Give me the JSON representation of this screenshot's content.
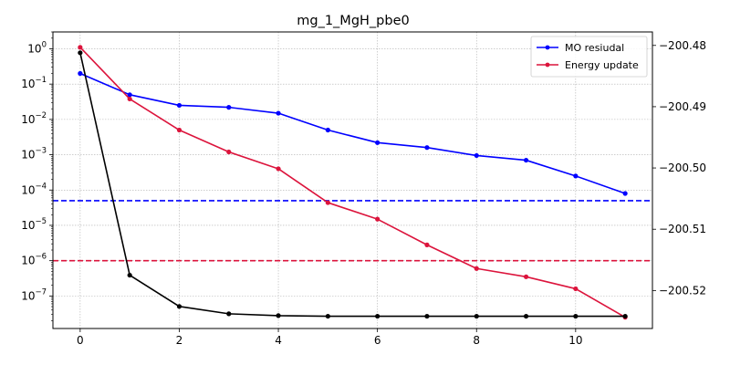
{
  "chart_data": {
    "type": "line",
    "title": "mg_1_MgH_pbe0",
    "xlabel": "",
    "ylabel": "",
    "x": [
      0,
      1,
      2,
      3,
      4,
      5,
      6,
      7,
      8,
      9,
      10,
      11
    ],
    "xlim": [
      -0.55,
      11.55
    ],
    "xticks": [
      0,
      2,
      4,
      6,
      8,
      10
    ],
    "left_axis": {
      "scale": "log",
      "ylim": [
        1.2e-08,
        3.0
      ],
      "ticks": [
        {
          "value": 1,
          "base": "10",
          "exp": "0"
        },
        {
          "value": 0.1,
          "base": "10",
          "exp": "−1"
        },
        {
          "value": 0.01,
          "base": "10",
          "exp": "−2"
        },
        {
          "value": 0.001,
          "base": "10",
          "exp": "−3"
        },
        {
          "value": 0.0001,
          "base": "10",
          "exp": "−4"
        },
        {
          "value": 1e-05,
          "base": "10",
          "exp": "−5"
        },
        {
          "value": 1e-06,
          "base": "10",
          "exp": "−6"
        },
        {
          "value": 1e-07,
          "base": "10",
          "exp": "−7"
        }
      ]
    },
    "right_axis": {
      "scale": "linear",
      "ylim": [
        -200.5262,
        -200.4778
      ],
      "ticks": [
        "−200.48",
        "−200.49",
        "−200.50",
        "−200.51",
        "−200.52"
      ],
      "tick_values": [
        -200.48,
        -200.49,
        -200.5,
        -200.51,
        -200.52
      ]
    },
    "series": [
      {
        "name": "MO resiudal",
        "axis": "left",
        "color": "#0000ff",
        "values": [
          0.2,
          0.05,
          0.025,
          0.022,
          0.015,
          0.005,
          0.0022,
          0.0016,
          0.00095,
          0.0007,
          0.00025,
          8e-05
        ]
      },
      {
        "name": "Energy update",
        "axis": "left",
        "color": "#dc143c",
        "values": [
          1.1,
          0.038,
          0.005,
          0.0012,
          0.0004,
          4.4e-05,
          1.5e-05,
          2.8e-06,
          6e-07,
          3.5e-07,
          1.6e-07,
          2.5e-08
        ]
      },
      {
        "axis": "right",
        "color": "#000000",
        "values": [
          -200.4812,
          -200.5175,
          -200.5226,
          -200.5238,
          -200.5241,
          -200.5242,
          -200.5242,
          -200.5242,
          -200.5242,
          -200.5242,
          -200.5242,
          -200.5242
        ]
      }
    ],
    "thresholds": [
      {
        "axis": "left",
        "value": 5e-05,
        "color": "#0000ff",
        "style": "dashed"
      },
      {
        "axis": "left",
        "value": 1e-06,
        "color": "#dc143c",
        "style": "dashed"
      }
    ],
    "grid": true,
    "legend": "top-right"
  }
}
